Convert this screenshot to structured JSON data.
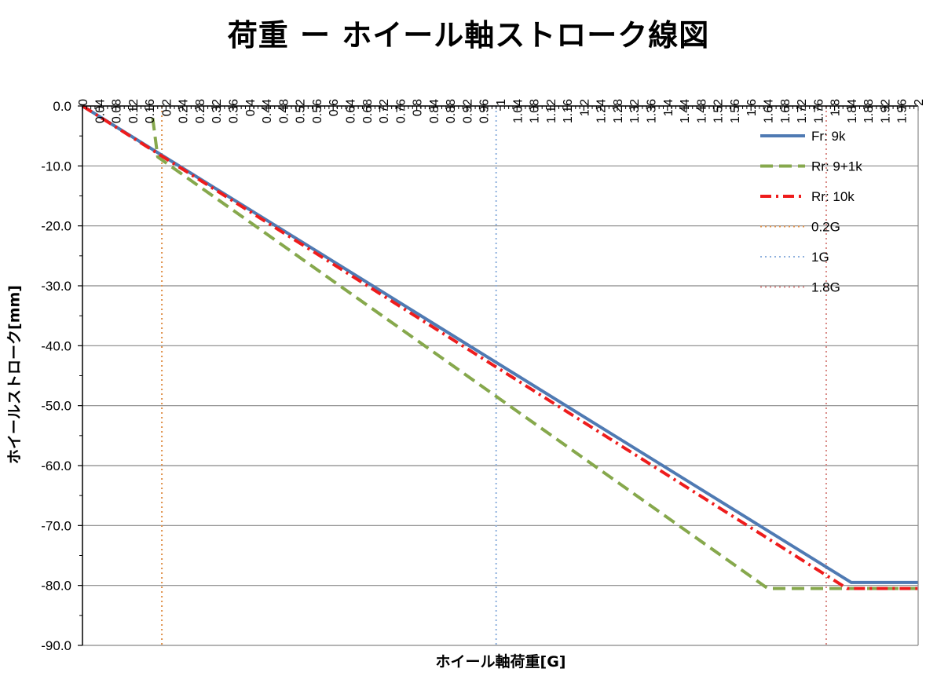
{
  "chart_data": {
    "type": "line",
    "title": "荷重 ー ホイール軸ストローク線図",
    "xlabel": "ホイール軸荷重[G]",
    "ylabel": "ホイールストローク[mm]",
    "xlim": [
      0,
      2
    ],
    "ylim": [
      -90,
      0
    ],
    "x_ticks": [
      "0",
      "0.04",
      "0.08",
      "0.12",
      "0.16",
      "0.2",
      "0.24",
      "0.28",
      "0.32",
      "0.36",
      "0.4",
      "0.44",
      "0.48",
      "0.52",
      "0.56",
      "0.6",
      "0.64",
      "0.68",
      "0.72",
      "0.76",
      "0.8",
      "0.84",
      "0.88",
      "0.92",
      "0.96",
      "1",
      "1.04",
      "1.08",
      "1.12",
      "1.16",
      "1.2",
      "1.24",
      "1.28",
      "1.32",
      "1.36",
      "1.4",
      "1.44",
      "1.48",
      "1.52",
      "1.56",
      "1.6",
      "1.64",
      "1.68",
      "1.72",
      "1.76",
      "1.8",
      "1.84",
      "1.88",
      "1.92",
      "1.96",
      "2"
    ],
    "y_ticks": [
      "0.0",
      "-10.0",
      "-20.0",
      "-30.0",
      "-40.0",
      "-50.0",
      "-60.0",
      "-70.0",
      "-80.0",
      "-90.0"
    ],
    "grid": "horizontal",
    "x_axis_position": "top",
    "legend_position": "top-right",
    "series": [
      {
        "name": "Fr: 9k",
        "color": "#4f7ab3",
        "style": "solid",
        "x": [
          0,
          1.84,
          2.0
        ],
        "y": [
          0,
          -79.5,
          -79.5
        ]
      },
      {
        "name": "Rr: 9+1k",
        "color": "#86a84c",
        "style": "dashed",
        "x": [
          0.168,
          0.18,
          1.64,
          2.0
        ],
        "y": [
          -2,
          -8.5,
          -80.5,
          -80.5
        ]
      },
      {
        "name": "Rr: 10k",
        "color": "#ee1c1c",
        "style": "dashdot",
        "x": [
          0,
          1.83,
          2.0
        ],
        "y": [
          0,
          -80.5,
          -80.5
        ]
      },
      {
        "name": "0.2G",
        "color": "#e0924d",
        "style": "dotted",
        "vline_x": 0.19
      },
      {
        "name": "1G",
        "color": "#8eb0dd",
        "style": "dotted",
        "vline_x": 0.99
      },
      {
        "name": "1.8G",
        "color": "#d88a86",
        "style": "dotted",
        "vline_x": 1.78
      }
    ]
  }
}
